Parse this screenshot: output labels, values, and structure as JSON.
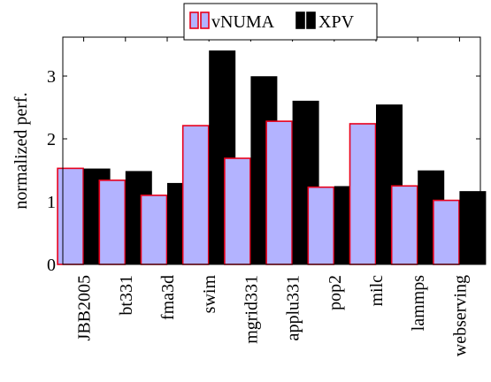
{
  "chart_data": {
    "type": "bar",
    "ylabel": "normalized perf.",
    "xlabel": "",
    "title": "",
    "ylim": [
      0,
      3.62
    ],
    "yticks": [
      0,
      1,
      2,
      3
    ],
    "grid": false,
    "legend_placement": "top-center",
    "categories": [
      "JBB2005",
      "bt331",
      "fma3d",
      "swim",
      "mgrid331",
      "applu331",
      "pop2",
      "milc",
      "lammps",
      "webserving"
    ],
    "series": [
      {
        "name": "vNUMA",
        "fill": "#b3b3ff",
        "stroke": "#e8001c",
        "values": [
          1.53,
          1.34,
          1.1,
          2.21,
          1.69,
          2.28,
          1.23,
          2.24,
          1.25,
          1.02
        ]
      },
      {
        "name": "XPV",
        "fill": "#000000",
        "stroke": "#000000",
        "values": [
          1.52,
          1.48,
          1.29,
          3.4,
          2.99,
          2.6,
          1.24,
          2.54,
          1.49,
          1.16
        ]
      }
    ]
  }
}
